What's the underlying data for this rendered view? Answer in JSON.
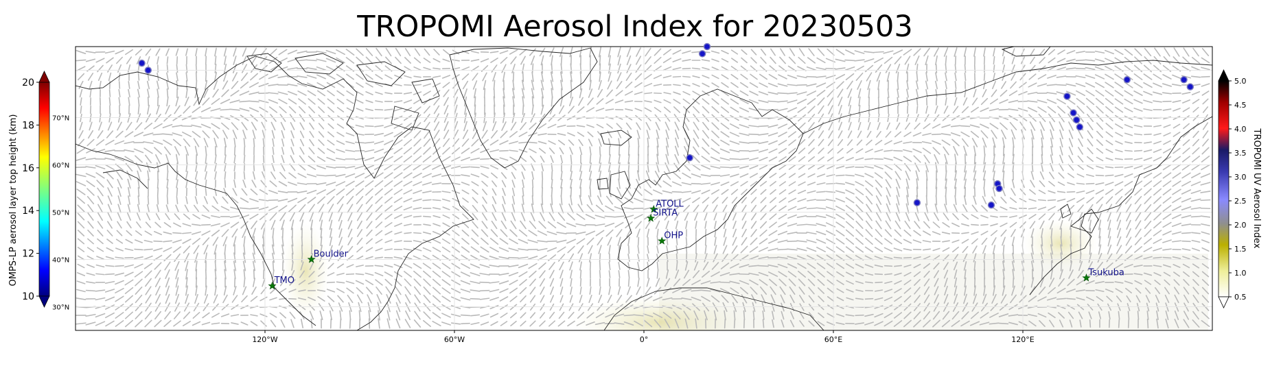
{
  "title": "TROPOMI Aerosol Index for 20230503",
  "left_colorbar": {
    "label": "OMPS-LP aerosol layer top height (km)",
    "ticks": [
      "10",
      "12",
      "14",
      "16",
      "18",
      "20"
    ],
    "range": [
      10,
      20
    ],
    "colormap": "jet"
  },
  "right_colorbar": {
    "label": "TROPOMI UV Aerosol Index",
    "ticks": [
      "0.5",
      "1.0",
      "1.5",
      "2.0",
      "2.5",
      "3.0",
      "3.5",
      "4.0",
      "4.5",
      "5.0"
    ],
    "range": [
      0.5,
      5.0
    ],
    "colors": [
      "#ffffff",
      "#b8b000",
      "#8c8c8c",
      "#7b7bff",
      "#1a1a8c",
      "#e60000",
      "#000000"
    ]
  },
  "map": {
    "lon_range": [
      -180,
      180
    ],
    "lat_range": [
      25,
      85
    ],
    "lon_ticks": [
      {
        "lon": -120,
        "label": "120°W"
      },
      {
        "lon": -60,
        "label": "60°W"
      },
      {
        "lon": 0,
        "label": "0°"
      },
      {
        "lon": 60,
        "label": "60°E"
      },
      {
        "lon": 120,
        "label": "120°E"
      }
    ],
    "lat_ticks": [
      {
        "lat": 70,
        "label": "70°N"
      },
      {
        "lat": 60,
        "label": "60°N"
      },
      {
        "lat": 50,
        "label": "50°N"
      },
      {
        "lat": 40,
        "label": "40°N"
      },
      {
        "lat": 30,
        "label": "30°N"
      }
    ]
  },
  "stations": [
    {
      "name": "ATOLL",
      "lon": 3.1,
      "lat": 50.6
    },
    {
      "name": "SIRTA",
      "lon": 2.2,
      "lat": 48.7
    },
    {
      "name": "OHP",
      "lon": 5.7,
      "lat": 43.9
    },
    {
      "name": "Boulder",
      "lon": -105.3,
      "lat": 40.0
    },
    {
      "name": "TMO",
      "lon": -117.7,
      "lat": 34.4
    },
    {
      "name": "Tsukuba",
      "lon": 140.1,
      "lat": 36.1
    }
  ],
  "omps_points": [
    {
      "lon": -159,
      "lat": 81.5
    },
    {
      "lon": -157,
      "lat": 80.0
    },
    {
      "lon": 18.5,
      "lat": 83.5
    },
    {
      "lon": 20,
      "lat": 85.0
    },
    {
      "lon": 14.5,
      "lat": 61.5
    },
    {
      "lon": 86.5,
      "lat": 52.0
    },
    {
      "lon": 112,
      "lat": 56.0
    },
    {
      "lon": 112.5,
      "lat": 55.0
    },
    {
      "lon": 110,
      "lat": 51.5
    },
    {
      "lon": 134,
      "lat": 74.5
    },
    {
      "lon": 136,
      "lat": 71.0
    },
    {
      "lon": 137,
      "lat": 69.5
    },
    {
      "lon": 138,
      "lat": 68.0
    },
    {
      "lon": 153,
      "lat": 78.0
    },
    {
      "lon": 171,
      "lat": 78.0
    },
    {
      "lon": 173,
      "lat": 76.5
    }
  ]
}
